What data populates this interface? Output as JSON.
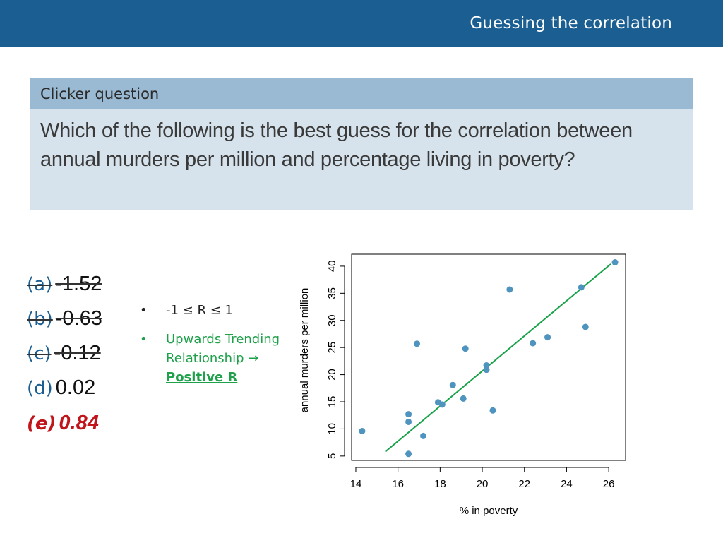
{
  "header": {
    "title": "Guessing the correlation"
  },
  "question": {
    "label": "Clicker question",
    "text": "Which of the following is the best guess for the correlation between annual murders per million and percentage living in poverty?"
  },
  "options": [
    {
      "letter": "(a)",
      "value": "-1.52",
      "struck": true
    },
    {
      "letter": "(b)",
      "value": "-0.63",
      "struck": true
    },
    {
      "letter": "(c)",
      "value": "-0.12",
      "struck": true
    },
    {
      "letter": "(d)",
      "value": "0.02",
      "struck": false
    },
    {
      "letter": "(e)",
      "value": "0.84",
      "answer": true
    }
  ],
  "notes": {
    "bullet1": "-1 ≤ R ≤ 1",
    "bullet2_line1": "Upwards Trending",
    "bullet2_line2": "Relationship →",
    "bullet2_strong": "Positive R"
  },
  "chart_data": {
    "type": "scatter",
    "xlabel": "% in poverty",
    "ylabel": "annual murders per million",
    "xlim": [
      13.8,
      26.8
    ],
    "ylim": [
      4.2,
      42.2
    ],
    "xticks": [
      14,
      16,
      18,
      20,
      22,
      24,
      26
    ],
    "yticks": [
      5,
      10,
      15,
      20,
      25,
      30,
      35,
      40
    ],
    "point_color": "#4f93bf",
    "line_color": "#1aa34a",
    "points": [
      [
        14.3,
        9.6
      ],
      [
        16.5,
        5.4
      ],
      [
        16.5,
        11.3
      ],
      [
        16.5,
        12.7
      ],
      [
        16.9,
        25.7
      ],
      [
        17.2,
        8.7
      ],
      [
        17.9,
        14.9
      ],
      [
        18.1,
        14.5
      ],
      [
        18.6,
        18.1
      ],
      [
        19.1,
        15.6
      ],
      [
        19.2,
        24.8
      ],
      [
        20.2,
        21.7
      ],
      [
        20.2,
        20.9
      ],
      [
        20.5,
        13.4
      ],
      [
        21.3,
        35.7
      ],
      [
        22.4,
        25.8
      ],
      [
        23.1,
        26.9
      ],
      [
        24.7,
        36.1
      ],
      [
        24.9,
        28.8
      ],
      [
        26.3,
        40.7
      ]
    ],
    "fit_line": {
      "x": [
        15.4,
        26.1
      ],
      "y": [
        5.8,
        40.4
      ]
    }
  }
}
